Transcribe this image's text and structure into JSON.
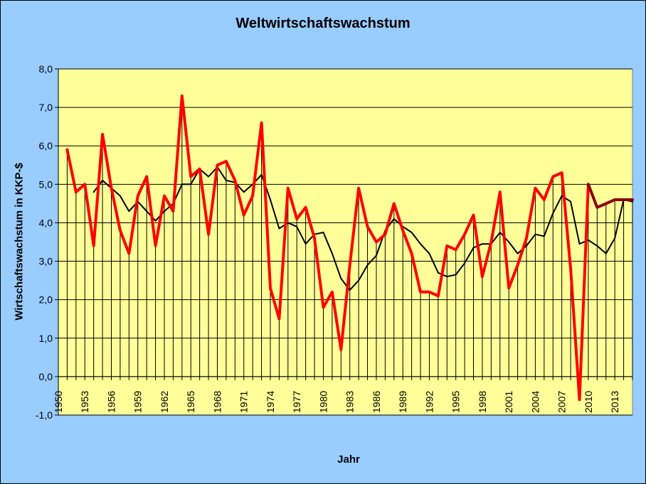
{
  "chart_data": {
    "type": "line",
    "title": "Weltwirtschaftswachstum",
    "xlabel": "Jahr",
    "ylabel": "Wirtschaftswachstum in KKP-$",
    "ylim": [
      -1,
      8
    ],
    "yticks": [
      "-1,0",
      "0,0",
      "1,0",
      "2,0",
      "3,0",
      "4,0",
      "5,0",
      "6,0",
      "7,0",
      "8,0"
    ],
    "xticks": [
      "1950",
      "1953",
      "1956",
      "1959",
      "1962",
      "1965",
      "1968",
      "1971",
      "1974",
      "1977",
      "1980",
      "1983",
      "1986",
      "1989",
      "1992",
      "1995",
      "1998",
      "2001",
      "2004",
      "2007",
      "2010",
      "2013"
    ],
    "xlim": [
      1950,
      2015
    ],
    "grid": "horizontal",
    "colors": {
      "background": "#99CCFF",
      "plot_area": "#FFFF99",
      "growth": "#FF0000",
      "forecast": "#8B0000",
      "average": "#000000"
    },
    "series": [
      {
        "key": "growth",
        "x": [
          1951,
          1952,
          1953,
          1954,
          1955,
          1956,
          1957,
          1958,
          1959,
          1960,
          1961,
          1962,
          1963,
          1964,
          1965,
          1966,
          1967,
          1968,
          1969,
          1970,
          1971,
          1972,
          1973,
          1974,
          1975,
          1976,
          1977,
          1978,
          1979,
          1980,
          1981,
          1982,
          1983,
          1984,
          1985,
          1986,
          1987,
          1988,
          1989,
          1990,
          1991,
          1992,
          1993,
          1994,
          1995,
          1996,
          1997,
          1998,
          1999,
          2000,
          2001,
          2002,
          2003,
          2004,
          2005,
          2006,
          2007,
          2008,
          2009,
          2010
        ],
        "values": [
          5.9,
          4.8,
          5.0,
          3.4,
          6.3,
          4.9,
          3.8,
          3.2,
          4.7,
          5.2,
          3.4,
          4.7,
          4.3,
          7.3,
          5.2,
          5.4,
          3.7,
          5.5,
          5.6,
          5.1,
          4.2,
          4.7,
          6.6,
          2.3,
          1.5,
          4.9,
          4.1,
          4.4,
          3.6,
          1.8,
          2.2,
          0.7,
          2.9,
          4.9,
          3.9,
          3.5,
          3.7,
          4.5,
          3.8,
          3.2,
          2.2,
          2.2,
          2.1,
          3.4,
          3.3,
          3.7,
          4.2,
          2.6,
          3.5,
          4.8,
          2.3,
          2.9,
          3.6,
          4.9,
          4.6,
          5.2,
          5.3,
          2.8,
          -0.6,
          5.0
        ]
      },
      {
        "key": "forecast",
        "x": [
          2010,
          2011,
          2012,
          2013,
          2014,
          2015
        ],
        "values": [
          5.0,
          4.4,
          4.5,
          4.6,
          4.6,
          4.6
        ]
      },
      {
        "key": "average",
        "x": [
          1954,
          1955,
          1956,
          1957,
          1958,
          1959,
          1960,
          1961,
          1962,
          1963,
          1964,
          1965,
          1966,
          1967,
          1968,
          1969,
          1970,
          1971,
          1972,
          1973,
          1974,
          1975,
          1976,
          1977,
          1978,
          1979,
          1980,
          1981,
          1982,
          1983,
          1984,
          1985,
          1986,
          1987,
          1988,
          1989,
          1990,
          1991,
          1992,
          1993,
          1994,
          1995,
          1996,
          1997,
          1998,
          1999,
          2000,
          2001,
          2002,
          2003,
          2004,
          2005,
          2006,
          2007,
          2008,
          2009,
          2010,
          2011,
          2012,
          2013,
          2014,
          2015
        ],
        "values": [
          4.8,
          5.1,
          4.9,
          4.7,
          4.3,
          4.55,
          4.3,
          4.05,
          4.3,
          4.5,
          5.0,
          5.0,
          5.4,
          5.2,
          5.45,
          5.1,
          5.05,
          4.8,
          5.0,
          5.25,
          4.6,
          3.85,
          4.0,
          3.9,
          3.45,
          3.7,
          3.75,
          3.2,
          2.55,
          2.25,
          2.5,
          2.9,
          3.15,
          3.8,
          4.1,
          3.9,
          3.75,
          3.45,
          3.2,
          2.7,
          2.6,
          2.65,
          2.95,
          3.35,
          3.45,
          3.45,
          3.75,
          3.5,
          3.2,
          3.4,
          3.7,
          3.65,
          4.25,
          4.7,
          4.55,
          3.45,
          3.55,
          3.4,
          3.2,
          3.6,
          4.6,
          4.55
        ]
      }
    ]
  }
}
